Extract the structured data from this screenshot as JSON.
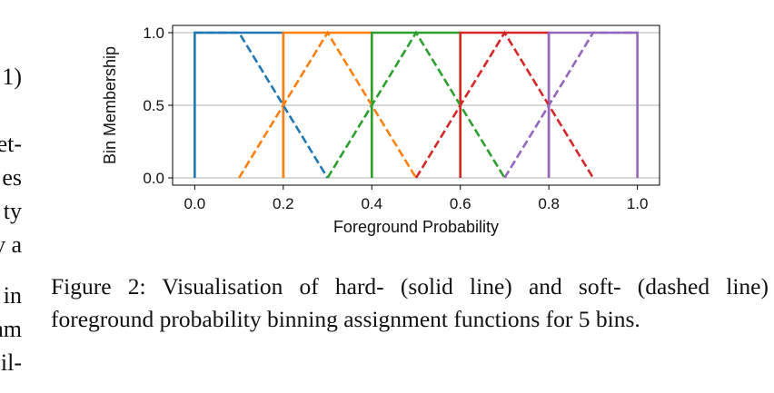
{
  "left_column_fragments": [
    "1)",
    "et-",
    "es",
    "ty",
    "v a",
    "in",
    "am",
    "il-"
  ],
  "caption": {
    "label": "Figure 2:",
    "text": "Visualisation of hard- (solid line) and soft- (dashed line) foreground probability binning assignment functions for 5 bins."
  },
  "chart_data": {
    "type": "line",
    "title": "",
    "xlabel": "Foreground Probability",
    "ylabel": "Bin Membership",
    "xlim": [
      -0.05,
      1.05
    ],
    "ylim": [
      -0.05,
      1.05
    ],
    "xticks": [
      0.0,
      0.2,
      0.4,
      0.6,
      0.8,
      1.0
    ],
    "xtick_labels": [
      "0.0",
      "0.2",
      "0.4",
      "0.6",
      "0.8",
      "1.0"
    ],
    "yticks": [
      0.0,
      0.5,
      1.0
    ],
    "ytick_labels": [
      "0.0",
      "0.5",
      "1.0"
    ],
    "grid": "horizontal",
    "legend": "none",
    "colors": [
      "#1f77b4",
      "#ff7f0e",
      "#2ca02c",
      "#d62728",
      "#9467bd"
    ],
    "series": [
      {
        "style": "solid",
        "color": "#1f77b4",
        "x": [
          0.0,
          0.0,
          0.2,
          0.2
        ],
        "y": [
          0,
          1,
          1,
          0
        ]
      },
      {
        "style": "solid",
        "color": "#ff7f0e",
        "x": [
          0.2,
          0.2,
          0.4,
          0.4
        ],
        "y": [
          0,
          1,
          1,
          0
        ]
      },
      {
        "style": "solid",
        "color": "#2ca02c",
        "x": [
          0.4,
          0.4,
          0.6,
          0.6
        ],
        "y": [
          0,
          1,
          1,
          0
        ]
      },
      {
        "style": "solid",
        "color": "#d62728",
        "x": [
          0.6,
          0.6,
          0.8,
          0.8
        ],
        "y": [
          0,
          1,
          1,
          0
        ]
      },
      {
        "style": "solid",
        "color": "#9467bd",
        "x": [
          0.8,
          0.8,
          1.0,
          1.0
        ],
        "y": [
          0,
          1,
          1,
          0
        ]
      },
      {
        "style": "dashed",
        "color": "#1f77b4",
        "x": [
          0.0,
          0.1,
          0.3
        ],
        "y": [
          1,
          1,
          0
        ]
      },
      {
        "style": "dashed",
        "color": "#ff7f0e",
        "x": [
          0.1,
          0.3,
          0.5
        ],
        "y": [
          0,
          1,
          0
        ]
      },
      {
        "style": "dashed",
        "color": "#2ca02c",
        "x": [
          0.3,
          0.5,
          0.7
        ],
        "y": [
          0,
          1,
          0
        ]
      },
      {
        "style": "dashed",
        "color": "#d62728",
        "x": [
          0.5,
          0.7,
          0.9
        ],
        "y": [
          0,
          1,
          0
        ]
      },
      {
        "style": "dashed",
        "color": "#9467bd",
        "x": [
          0.7,
          0.9,
          1.0
        ],
        "y": [
          0,
          1,
          1
        ]
      }
    ]
  }
}
